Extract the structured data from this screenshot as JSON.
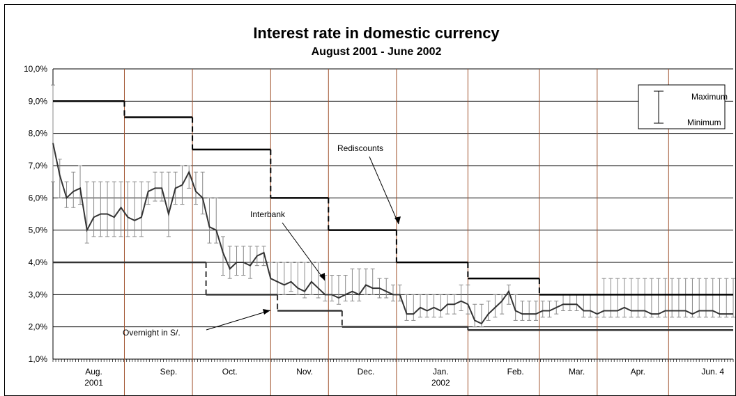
{
  "chart_data": {
    "type": "line",
    "title": "Interest rate in domestic currency",
    "subtitle": "August 2001 - June 2002",
    "ylim": [
      0.01,
      0.1
    ],
    "y_ticks": [
      "10,0%",
      "9,0%",
      "8,0%",
      "7,0%",
      "6,0%",
      "5,0%",
      "4,0%",
      "3,0%",
      "2,0%",
      "1,0%"
    ],
    "x_tick_labels": [
      {
        "label": "Aug.",
        "sub": "2001",
        "pos": 0.06
      },
      {
        "label": "Sep.",
        "pos": 0.17
      },
      {
        "label": "Oct.",
        "pos": 0.26
      },
      {
        "label": "Nov.",
        "pos": 0.37
      },
      {
        "label": "Dec.",
        "pos": 0.46
      },
      {
        "label": "Jan.",
        "sub": "2002",
        "pos": 0.57
      },
      {
        "label": "Feb.",
        "pos": 0.68
      },
      {
        "label": "Mar.",
        "pos": 0.77
      },
      {
        "label": "Apr.",
        "pos": 0.86
      },
      {
        "label": "Jun. 4",
        "pos": 0.97
      }
    ],
    "vertical_markers": [
      0.105,
      0.205,
      0.32,
      0.405,
      0.505,
      0.61,
      0.715,
      0.8,
      0.905
    ],
    "grid": true,
    "legend": {
      "placement": "top-right",
      "items": [
        "Maximum",
        "Minimum"
      ]
    },
    "annotations": [
      "Rediscounts",
      "Interbank",
      "Overnight in S/."
    ],
    "series": [
      {
        "name": "Rediscounts",
        "style": "step-black",
        "steps": [
          {
            "x0": 0.0,
            "x1": 0.105,
            "y": 0.09
          },
          {
            "x0": 0.105,
            "x1": 0.205,
            "y": 0.085
          },
          {
            "x0": 0.205,
            "x1": 0.32,
            "y": 0.075
          },
          {
            "x0": 0.32,
            "x1": 0.405,
            "y": 0.06
          },
          {
            "x0": 0.405,
            "x1": 0.505,
            "y": 0.05
          },
          {
            "x0": 0.505,
            "x1": 0.61,
            "y": 0.04
          },
          {
            "x0": 0.61,
            "x1": 0.715,
            "y": 0.035
          },
          {
            "x0": 0.715,
            "x1": 1.0,
            "y": 0.03
          }
        ]
      },
      {
        "name": "Overnight in S/.",
        "style": "step-gray",
        "steps": [
          {
            "x0": 0.0,
            "x1": 0.225,
            "y": 0.04
          },
          {
            "x0": 0.225,
            "x1": 0.33,
            "y": 0.03
          },
          {
            "x0": 0.33,
            "x1": 0.425,
            "y": 0.025
          },
          {
            "x0": 0.425,
            "x1": 0.61,
            "y": 0.02
          },
          {
            "x0": 0.61,
            "x1": 1.0,
            "y": 0.019
          }
        ]
      },
      {
        "name": "Interbank",
        "style": "line-with-range",
        "x": [
          0.0,
          0.01,
          0.02,
          0.03,
          0.04,
          0.05,
          0.06,
          0.07,
          0.08,
          0.09,
          0.1,
          0.11,
          0.12,
          0.13,
          0.14,
          0.15,
          0.16,
          0.17,
          0.18,
          0.19,
          0.2,
          0.21,
          0.22,
          0.23,
          0.24,
          0.25,
          0.26,
          0.27,
          0.28,
          0.29,
          0.3,
          0.31,
          0.32,
          0.33,
          0.34,
          0.35,
          0.36,
          0.37,
          0.38,
          0.39,
          0.4,
          0.41,
          0.42,
          0.43,
          0.44,
          0.45,
          0.46,
          0.47,
          0.48,
          0.49,
          0.5,
          0.51,
          0.52,
          0.53,
          0.54,
          0.55,
          0.56,
          0.57,
          0.58,
          0.59,
          0.6,
          0.61,
          0.62,
          0.63,
          0.64,
          0.65,
          0.66,
          0.67,
          0.68,
          0.69,
          0.7,
          0.71,
          0.72,
          0.73,
          0.74,
          0.75,
          0.76,
          0.77,
          0.78,
          0.79,
          0.8,
          0.81,
          0.82,
          0.83,
          0.84,
          0.85,
          0.86,
          0.87,
          0.88,
          0.89,
          0.9,
          0.91,
          0.92,
          0.93,
          0.94,
          0.95,
          0.96,
          0.97,
          0.98,
          0.99,
          1.0
        ],
        "values": [
          0.077,
          0.067,
          0.06,
          0.062,
          0.063,
          0.05,
          0.054,
          0.055,
          0.055,
          0.054,
          0.057,
          0.054,
          0.053,
          0.054,
          0.062,
          0.063,
          0.063,
          0.055,
          0.063,
          0.064,
          0.068,
          0.062,
          0.06,
          0.051,
          0.05,
          0.043,
          0.038,
          0.04,
          0.04,
          0.039,
          0.042,
          0.043,
          0.035,
          0.034,
          0.033,
          0.034,
          0.032,
          0.031,
          0.034,
          0.032,
          0.03,
          0.03,
          0.029,
          0.03,
          0.031,
          0.03,
          0.033,
          0.032,
          0.032,
          0.031,
          0.03,
          0.03,
          0.024,
          0.024,
          0.026,
          0.025,
          0.026,
          0.025,
          0.027,
          0.027,
          0.028,
          0.027,
          0.022,
          0.021,
          0.024,
          0.026,
          0.028,
          0.031,
          0.025,
          0.024,
          0.024,
          0.024,
          0.025,
          0.025,
          0.026,
          0.027,
          0.027,
          0.027,
          0.025,
          0.025,
          0.024,
          0.025,
          0.025,
          0.025,
          0.026,
          0.025,
          0.025,
          0.025,
          0.024,
          0.024,
          0.025,
          0.025,
          0.025,
          0.025,
          0.024,
          0.025,
          0.025,
          0.025,
          0.024,
          0.024,
          0.024
        ],
        "max": [
          0.095,
          0.072,
          0.065,
          0.068,
          0.07,
          0.065,
          0.065,
          0.065,
          0.065,
          0.065,
          0.065,
          0.065,
          0.065,
          0.065,
          0.065,
          0.068,
          0.068,
          0.068,
          0.068,
          0.07,
          0.07,
          0.068,
          0.068,
          0.06,
          0.06,
          0.048,
          0.045,
          0.045,
          0.045,
          0.045,
          0.045,
          0.045,
          0.04,
          0.04,
          0.04,
          0.04,
          0.04,
          0.04,
          0.04,
          0.04,
          0.036,
          0.036,
          0.036,
          0.036,
          0.038,
          0.038,
          0.038,
          0.038,
          0.035,
          0.035,
          0.033,
          0.033,
          0.03,
          0.03,
          0.03,
          0.03,
          0.03,
          0.03,
          0.03,
          0.03,
          0.033,
          0.033,
          0.027,
          0.027,
          0.028,
          0.03,
          0.03,
          0.033,
          0.03,
          0.028,
          0.028,
          0.028,
          0.028,
          0.028,
          0.028,
          0.03,
          0.03,
          0.03,
          0.03,
          0.03,
          0.03,
          0.035,
          0.035,
          0.035,
          0.035,
          0.035,
          0.035,
          0.035,
          0.035,
          0.035,
          0.035,
          0.035,
          0.035,
          0.035,
          0.035,
          0.035,
          0.035,
          0.035,
          0.035,
          0.035,
          0.035
        ],
        "min": [
          0.065,
          0.06,
          0.057,
          0.057,
          0.058,
          0.046,
          0.048,
          0.048,
          0.048,
          0.048,
          0.048,
          0.048,
          0.048,
          0.048,
          0.058,
          0.059,
          0.059,
          0.048,
          0.058,
          0.058,
          0.063,
          0.058,
          0.055,
          0.046,
          0.046,
          0.036,
          0.035,
          0.036,
          0.036,
          0.035,
          0.039,
          0.039,
          0.03,
          0.03,
          0.03,
          0.031,
          0.03,
          0.029,
          0.03,
          0.029,
          0.028,
          0.028,
          0.027,
          0.028,
          0.028,
          0.028,
          0.03,
          0.03,
          0.029,
          0.029,
          0.028,
          0.028,
          0.022,
          0.022,
          0.023,
          0.023,
          0.023,
          0.023,
          0.024,
          0.024,
          0.025,
          0.024,
          0.02,
          0.02,
          0.022,
          0.023,
          0.024,
          0.027,
          0.022,
          0.022,
          0.022,
          0.022,
          0.023,
          0.023,
          0.024,
          0.025,
          0.025,
          0.025,
          0.023,
          0.023,
          0.023,
          0.023,
          0.023,
          0.023,
          0.023,
          0.023,
          0.023,
          0.023,
          0.023,
          0.023,
          0.023,
          0.023,
          0.023,
          0.023,
          0.023,
          0.023,
          0.023,
          0.023,
          0.023,
          0.023,
          0.023
        ]
      }
    ]
  }
}
